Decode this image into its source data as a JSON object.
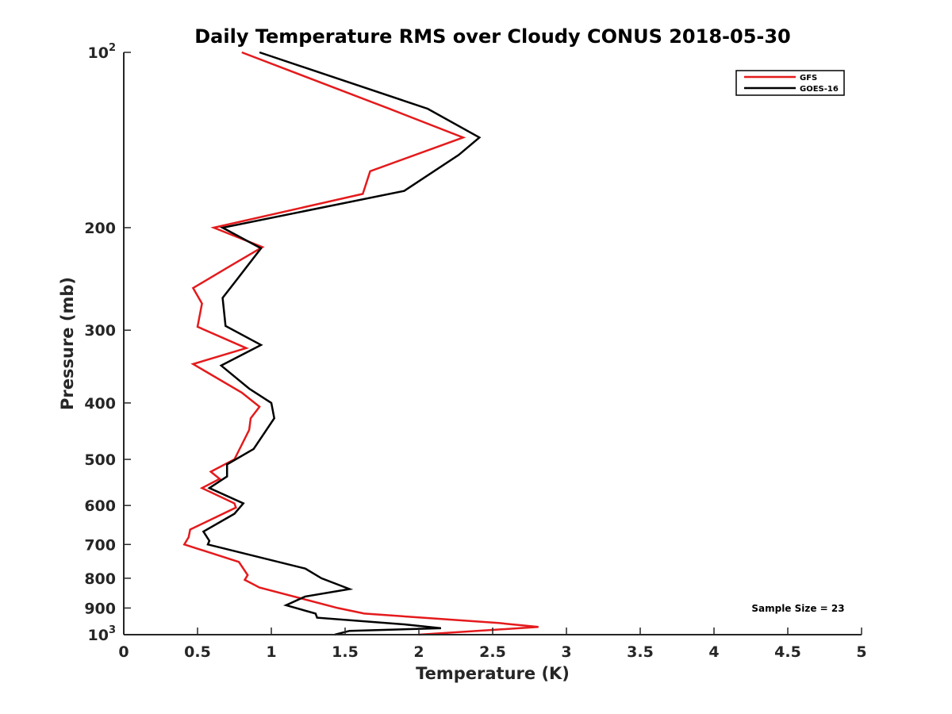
{
  "chart_data": {
    "type": "line",
    "title": "Daily Temperature RMS over Cloudy CONUS 2018-05-30",
    "xlabel": "Temperature (K)",
    "ylabel": "Pressure (mb)",
    "xlim": [
      0,
      5
    ],
    "ylim": [
      100,
      1000
    ],
    "yscale": "log",
    "yreversed": true,
    "xticks": [
      0,
      0.5,
      1,
      1.5,
      2,
      2.5,
      3,
      3.5,
      4,
      4.5,
      5
    ],
    "xtick_labels": [
      "0",
      "0.5",
      "1",
      "1.5",
      "2",
      "2.5",
      "3",
      "3.5",
      "4",
      "4.5",
      "5"
    ],
    "yticks": [
      {
        "value": 100,
        "base": "10",
        "exp": "2"
      },
      {
        "value": 200,
        "label": "200"
      },
      {
        "value": 300,
        "label": "300"
      },
      {
        "value": 400,
        "label": "400"
      },
      {
        "value": 500,
        "label": "500"
      },
      {
        "value": 600,
        "label": "600"
      },
      {
        "value": 700,
        "label": "700"
      },
      {
        "value": 800,
        "label": "800"
      },
      {
        "value": 900,
        "label": "900"
      },
      {
        "value": 1000,
        "base": "10",
        "exp": "3"
      }
    ],
    "grid": false,
    "legend_position": "top-right",
    "annotation": "Sample Size = 23",
    "series": [
      {
        "name": "GFS",
        "color": "#e41a1c",
        "points": [
          [
            0.8,
            100
          ],
          [
            1.8,
            125
          ],
          [
            2.3,
            140
          ],
          [
            1.67,
            160
          ],
          [
            1.62,
            175
          ],
          [
            0.61,
            200
          ],
          [
            0.94,
            216
          ],
          [
            0.73,
            232
          ],
          [
            0.47,
            254
          ],
          [
            0.53,
            270
          ],
          [
            0.5,
            296
          ],
          [
            0.83,
            322
          ],
          [
            0.47,
            343
          ],
          [
            0.8,
            384
          ],
          [
            0.92,
            406
          ],
          [
            0.86,
            425
          ],
          [
            0.85,
            445
          ],
          [
            0.75,
            500
          ],
          [
            0.59,
            525
          ],
          [
            0.65,
            540
          ],
          [
            0.53,
            560
          ],
          [
            0.75,
            595
          ],
          [
            0.76,
            605
          ],
          [
            0.45,
            660
          ],
          [
            0.44,
            680
          ],
          [
            0.41,
            700
          ],
          [
            0.78,
            750
          ],
          [
            0.84,
            790
          ],
          [
            0.82,
            805
          ],
          [
            0.92,
            830
          ],
          [
            1.45,
            900
          ],
          [
            1.63,
            920
          ],
          [
            2.54,
            955
          ],
          [
            2.81,
            970
          ],
          [
            2.0,
            1000
          ]
        ]
      },
      {
        "name": "GOES-16",
        "color": "#000000",
        "points": [
          [
            0.92,
            100
          ],
          [
            2.06,
            125
          ],
          [
            2.41,
            140
          ],
          [
            2.27,
            150
          ],
          [
            1.9,
            173
          ],
          [
            0.67,
            200
          ],
          [
            0.93,
            217
          ],
          [
            0.77,
            245
          ],
          [
            0.67,
            264
          ],
          [
            0.69,
            295
          ],
          [
            0.93,
            318
          ],
          [
            0.66,
            345
          ],
          [
            0.85,
            378
          ],
          [
            1.0,
            400
          ],
          [
            1.02,
            425
          ],
          [
            0.88,
            480
          ],
          [
            0.7,
            510
          ],
          [
            0.7,
            535
          ],
          [
            0.58,
            560
          ],
          [
            0.81,
            595
          ],
          [
            0.75,
            620
          ],
          [
            0.54,
            665
          ],
          [
            0.58,
            690
          ],
          [
            0.57,
            700
          ],
          [
            1.23,
            770
          ],
          [
            1.34,
            800
          ],
          [
            1.53,
            835
          ],
          [
            1.23,
            860
          ],
          [
            1.1,
            890
          ],
          [
            1.3,
            920
          ],
          [
            1.31,
            935
          ],
          [
            1.9,
            960
          ],
          [
            2.15,
            975
          ],
          [
            1.53,
            985
          ],
          [
            1.43,
            1000
          ]
        ]
      }
    ]
  }
}
